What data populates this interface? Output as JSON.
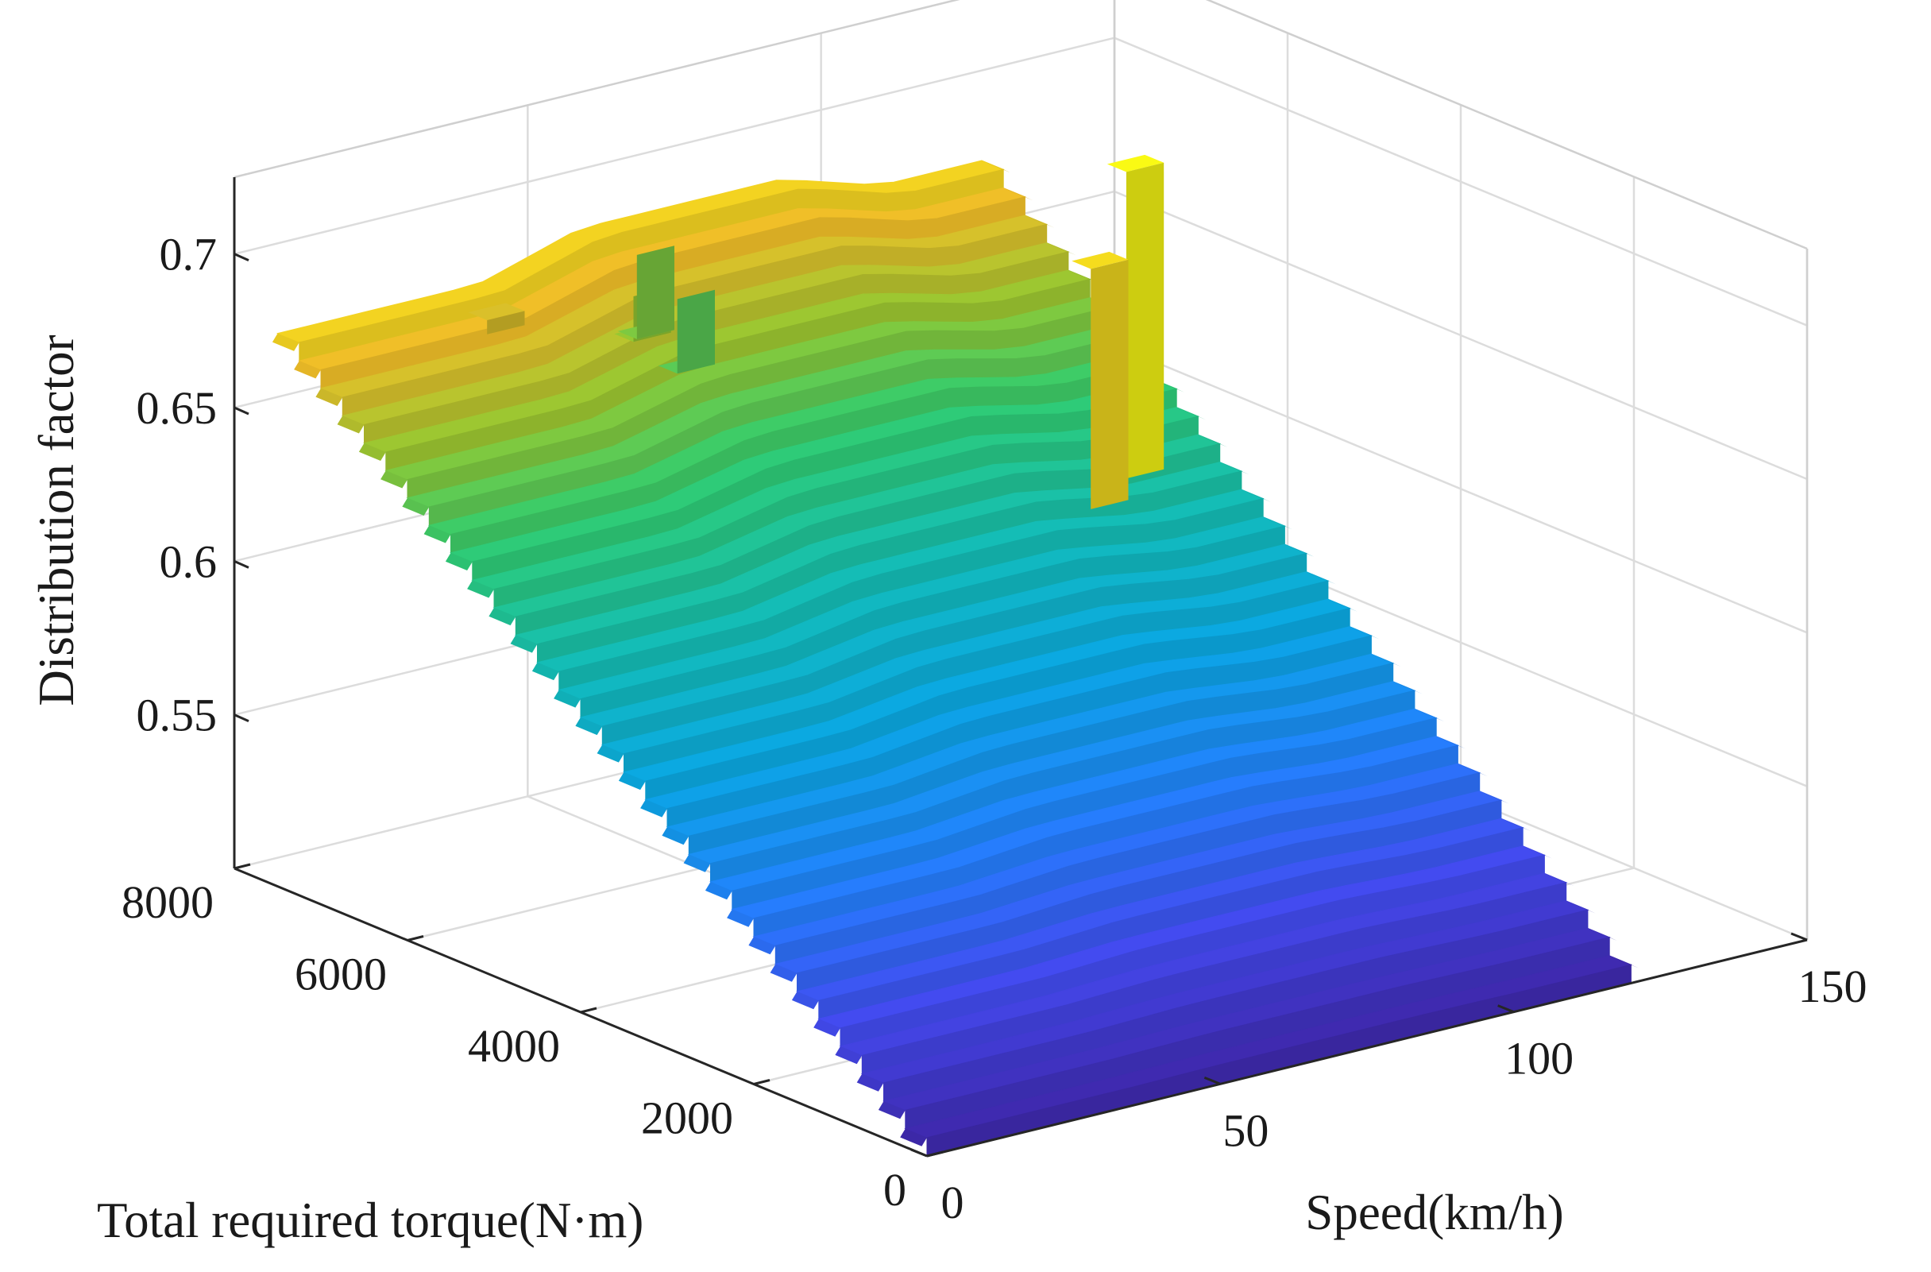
{
  "chart_data": {
    "type": "surface3d",
    "title": "",
    "xlabel": "Speed(km/h)",
    "ylabel": "Total required torque(N·m)",
    "zlabel": "Distribution factor",
    "xlim": [
      0,
      150
    ],
    "ylim": [
      0,
      8000
    ],
    "zlim": [
      0.5,
      0.725
    ],
    "x_ticks": [
      0,
      50,
      100,
      150
    ],
    "x_tick_labels": [
      "0",
      "50",
      "100",
      "150"
    ],
    "y_ticks": [
      0,
      2000,
      4000,
      6000,
      8000
    ],
    "y_tick_labels": [
      "0",
      "2000",
      "4000",
      "6000",
      "8000"
    ],
    "z_ticks": [
      0.55,
      0.6,
      0.65,
      0.7
    ],
    "z_tick_labels": [
      "0.55",
      "0.6",
      "0.65",
      "0.7"
    ],
    "grid": true,
    "colormap": "parula",
    "surface_extent": {
      "speed": [
        0,
        120
      ],
      "torque": [
        0,
        7500
      ]
    },
    "band_ranges": [
      {
        "torque": 0,
        "values": [
          0.5,
          0.5,
          0.5,
          0.5,
          0.5,
          0.5,
          0.5,
          0.5
        ]
      },
      {
        "torque": 7500,
        "values": [
          0.68,
          0.68,
          0.68,
          0.69,
          0.69,
          0.69,
          0.68,
          0.68
        ]
      }
    ],
    "steps_count": 30,
    "spikes": [
      {
        "speed": 108,
        "torque": 4800,
        "value": 0.715
      },
      {
        "speed": 99,
        "torque": 4600,
        "value": 0.69
      },
      {
        "speed": 33,
        "torque": 7100,
        "value": 0.675
      },
      {
        "speed": 55,
        "torque": 6900,
        "value": 0.66
      },
      {
        "speed": 61,
        "torque": 6800,
        "value": 0.648
      },
      {
        "speed": 60,
        "torque": 7200,
        "value": 0.655
      }
    ]
  }
}
